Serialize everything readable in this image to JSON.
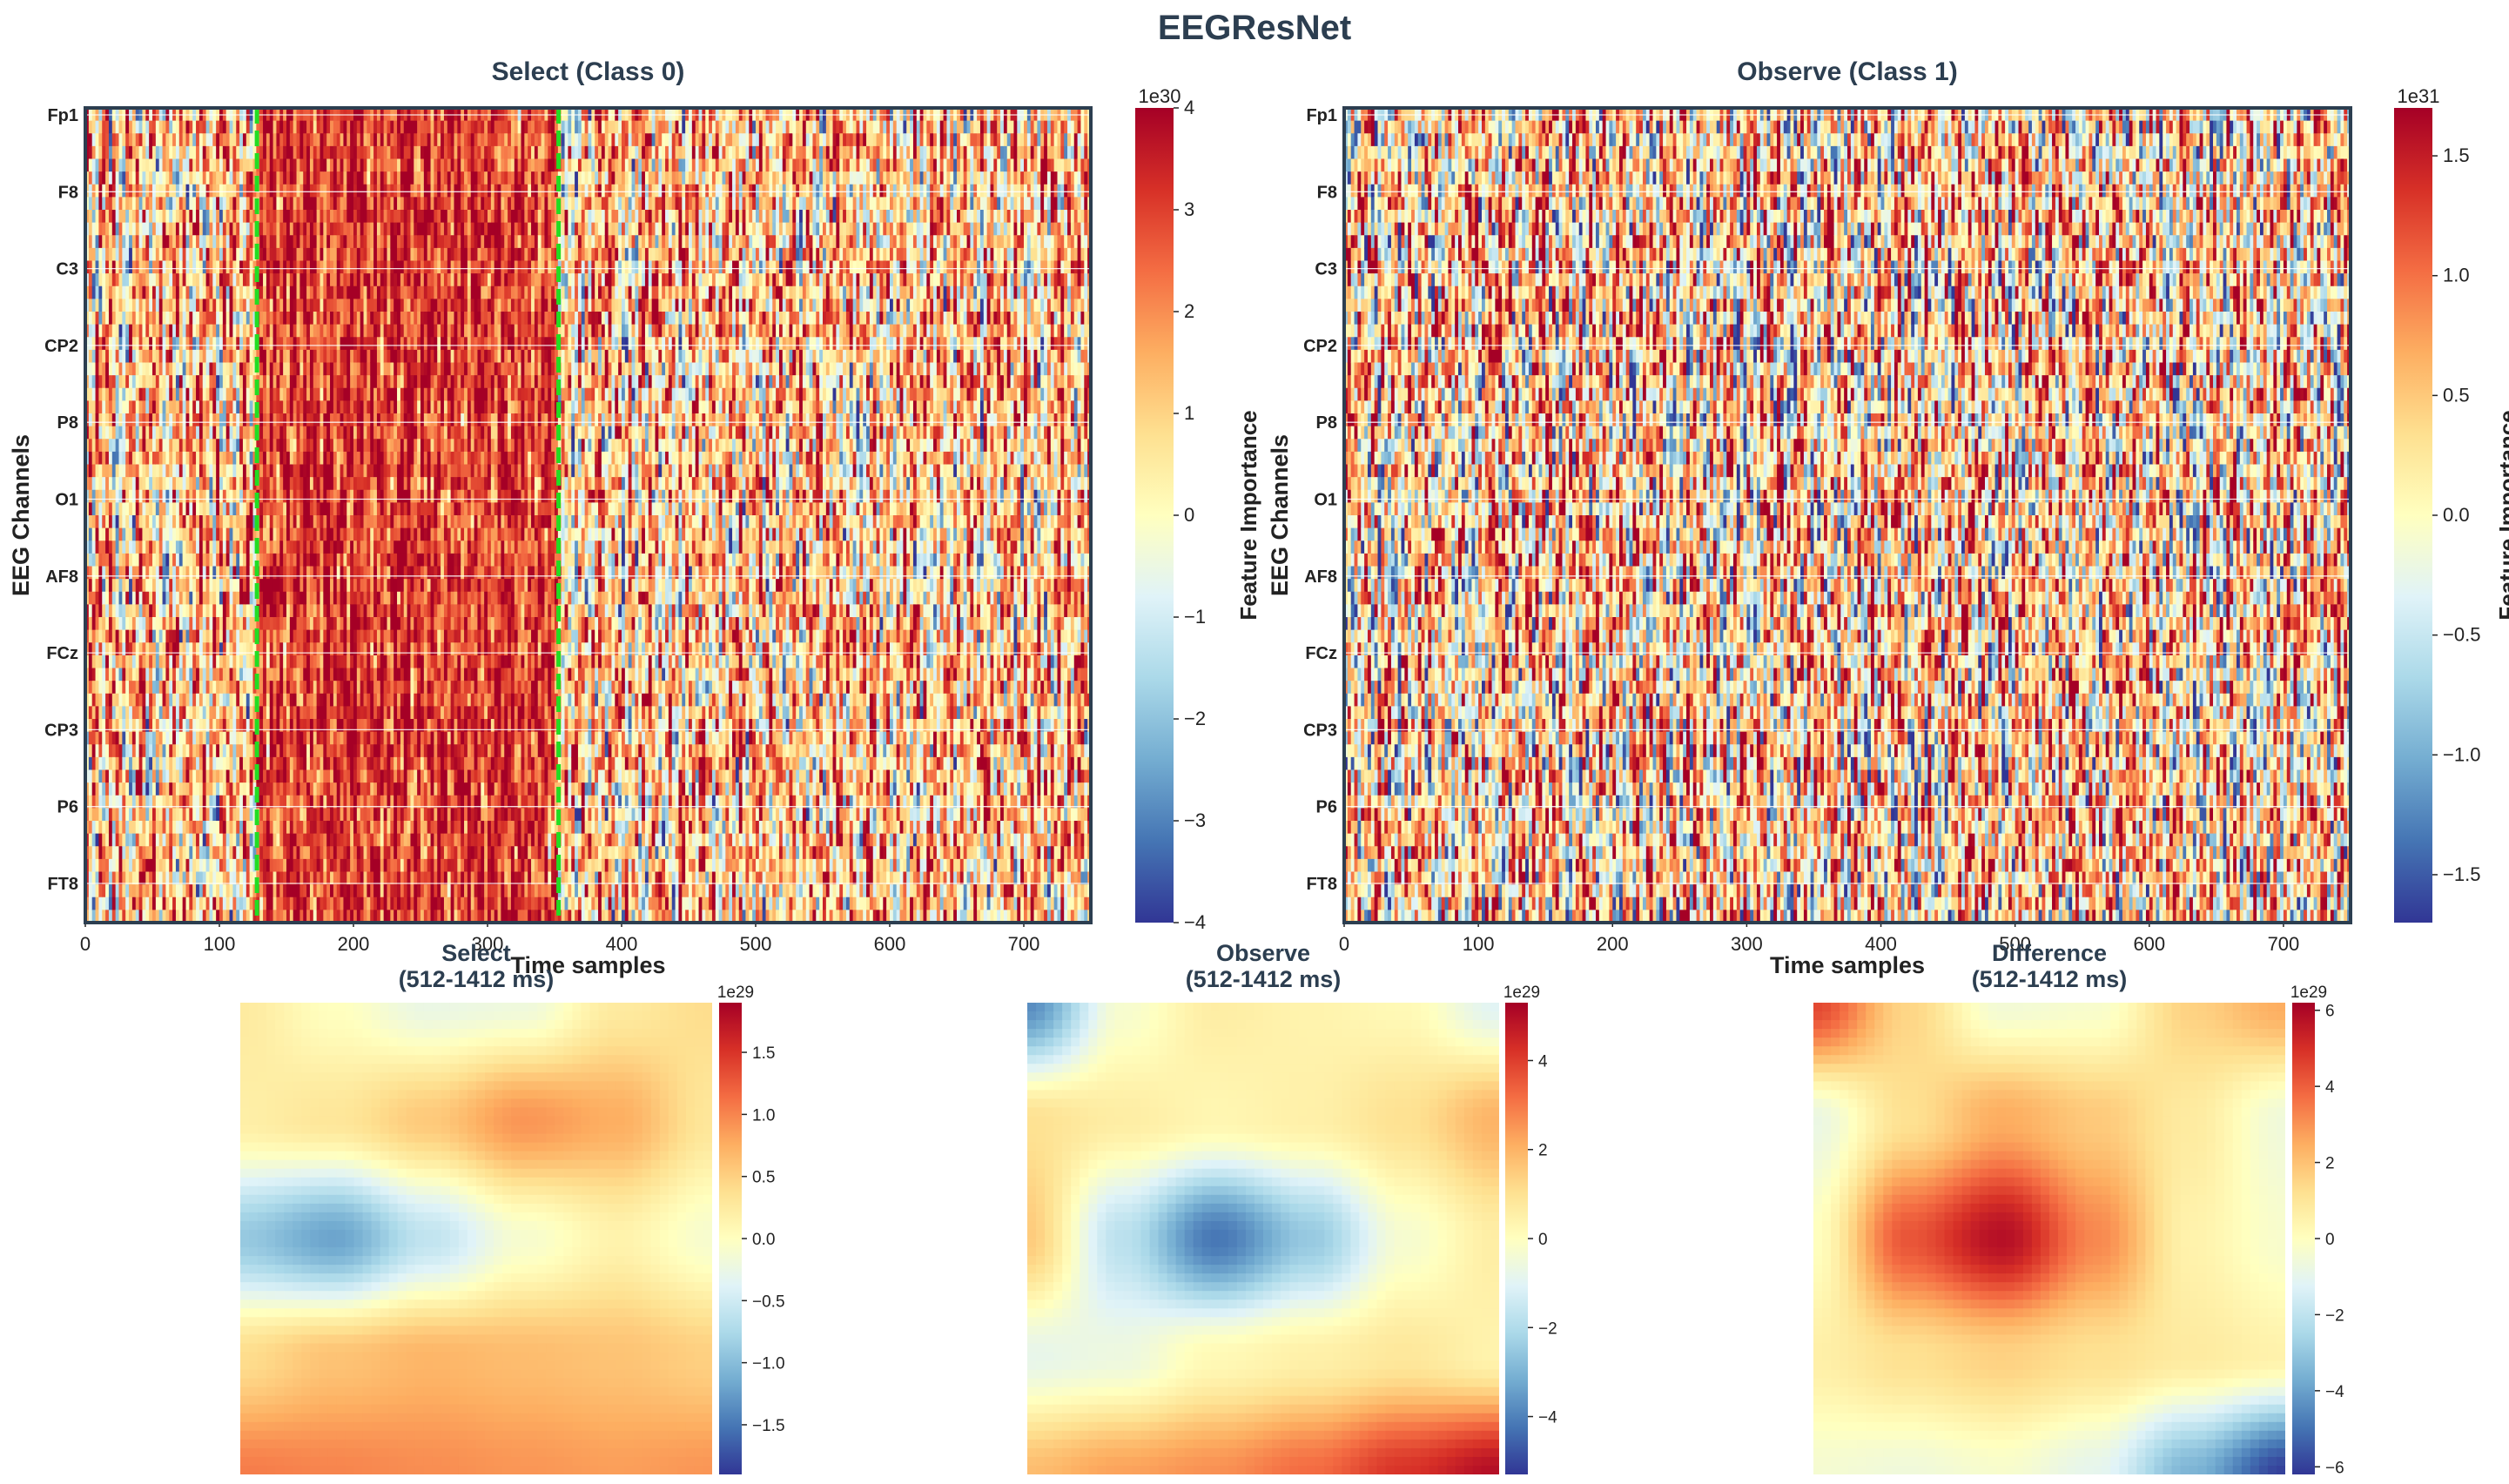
{
  "figure": {
    "title": "EEGResNet"
  },
  "colors": {
    "title": "#2c3e50",
    "text": "#222222",
    "frame": "#2c3e50",
    "grid": "#ffffff",
    "window_line": "#22dd22",
    "colormap": [
      "#313695",
      "#4575b4",
      "#74add1",
      "#abd9e9",
      "#e0f3f8",
      "#ffffbf",
      "#fee090",
      "#fdae61",
      "#f46d43",
      "#d73027",
      "#a50026"
    ]
  },
  "chart_data": [
    {
      "id": "select-heatmap",
      "type": "heatmap",
      "title": "Select (Class 0)",
      "xlabel": "Time samples",
      "ylabel": "EEG Channels",
      "x_ticks": [
        "0",
        "100",
        "200",
        "300",
        "400",
        "500",
        "600",
        "700"
      ],
      "x_tick_values": [
        0,
        100,
        200,
        300,
        400,
        500,
        600,
        700
      ],
      "xlim": [
        0,
        750
      ],
      "channels": [
        "Fp1",
        "F8",
        "C3",
        "CP2",
        "P8",
        "O1",
        "AF8",
        "FCz",
        "CP3",
        "P6",
        "FT8"
      ],
      "n_rows": 64,
      "time_window": {
        "start": 128,
        "end": 353
      },
      "colorbar": {
        "label": "Feature Importance",
        "offset_text": "1e30",
        "min": -4,
        "max": 4,
        "ticks": [
          "−4",
          "−3",
          "−2",
          "−1",
          "0",
          "1",
          "2",
          "3",
          "4"
        ],
        "tick_values": [
          -4,
          -3,
          -2,
          -1,
          0,
          1,
          2,
          3,
          4
        ]
      },
      "noise": {
        "bias": 0.12,
        "amp": 0.55,
        "window_bias": 0.38,
        "window_amp": 0.3,
        "seed": 7
      }
    },
    {
      "id": "observe-heatmap",
      "type": "heatmap",
      "title": "Observe (Class 1)",
      "xlabel": "Time samples",
      "ylabel": "EEG Channels",
      "x_ticks": [
        "0",
        "100",
        "200",
        "300",
        "400",
        "500",
        "600",
        "700"
      ],
      "x_tick_values": [
        0,
        100,
        200,
        300,
        400,
        500,
        600,
        700
      ],
      "xlim": [
        0,
        750
      ],
      "channels": [
        "Fp1",
        "F8",
        "C3",
        "CP2",
        "P8",
        "O1",
        "AF8",
        "FCz",
        "CP3",
        "P6",
        "FT8"
      ],
      "n_rows": 64,
      "colorbar": {
        "label": "Feature Importance",
        "offset_text": "1e31",
        "min": -1.7,
        "max": 1.7,
        "ticks": [
          "−1.5",
          "−1.0",
          "−0.5",
          "0.0",
          "0.5",
          "1.0",
          "1.5"
        ],
        "tick_values": [
          -1.5,
          -1.0,
          -0.5,
          0.0,
          0.5,
          1.0,
          1.5
        ]
      },
      "noise": {
        "bias": 0.08,
        "amp": 0.65,
        "seed": 13
      }
    },
    {
      "id": "select-topomap",
      "type": "heatmap",
      "title": "Select\n(512-1412 ms)",
      "title_lines": [
        "Select",
        "(512-1412 ms)"
      ],
      "grid": [
        [
          0.25,
          0.0,
          -0.25,
          -0.2,
          0.25,
          0.4
        ],
        [
          0.2,
          0.3,
          0.55,
          0.9,
          0.75,
          0.3
        ],
        [
          -0.9,
          -1.2,
          -0.6,
          -0.1,
          0.15,
          -0.1
        ],
        [
          0.4,
          0.6,
          0.7,
          0.65,
          0.6,
          0.5
        ],
        [
          1.05,
          1.0,
          0.95,
          0.9,
          0.85,
          0.9
        ]
      ],
      "colorbar": {
        "offset_text": "1e29",
        "min": -1.9,
        "max": 1.9,
        "ticks": [
          "−1.5",
          "−1.0",
          "−0.5",
          "0.0",
          "0.5",
          "1.0",
          "1.5"
        ],
        "tick_values": [
          -1.5,
          -1.0,
          -0.5,
          0.0,
          0.5,
          1.0,
          1.5
        ]
      }
    },
    {
      "id": "observe-topomap",
      "type": "heatmap",
      "title": "Observe\n(512-1412 ms)",
      "title_lines": [
        "Observe",
        "(512-1412 ms)"
      ],
      "grid": [
        [
          -3.8,
          -0.3,
          0.6,
          0.4,
          0.2,
          -1.0
        ],
        [
          1.0,
          0.6,
          0.3,
          0.5,
          1.0,
          2.0
        ],
        [
          1.5,
          -1.8,
          -4.2,
          -2.5,
          -0.3,
          0.6
        ],
        [
          -0.8,
          -0.6,
          0.2,
          0.5,
          0.8,
          0.4
        ],
        [
          1.8,
          2.3,
          2.6,
          3.2,
          4.2,
          5.0
        ]
      ],
      "colorbar": {
        "offset_text": "1e29",
        "min": -5.3,
        "max": 5.3,
        "ticks": [
          "−4",
          "−2",
          "0",
          "2",
          "4"
        ],
        "tick_values": [
          -4,
          -2,
          0,
          2,
          4
        ]
      }
    },
    {
      "id": "difference-topomap",
      "type": "heatmap",
      "title": "Difference\n(512-1412 ms)",
      "title_lines": [
        "Difference",
        "(512-1412 ms)"
      ],
      "grid": [
        [
          4.5,
          1.5,
          -0.5,
          -0.3,
          1.6,
          2.5
        ],
        [
          -0.8,
          1.2,
          2.5,
          1.8,
          0.8,
          -0.6
        ],
        [
          0.0,
          4.2,
          5.8,
          3.2,
          0.5,
          -0.3
        ],
        [
          0.6,
          1.2,
          1.6,
          1.2,
          0.8,
          0.5
        ],
        [
          -0.4,
          -0.6,
          -0.3,
          -1.0,
          -3.5,
          -6.0
        ]
      ],
      "colorbar": {
        "offset_text": "1e29",
        "min": -6.2,
        "max": 6.2,
        "ticks": [
          "−6",
          "−4",
          "−2",
          "0",
          "2",
          "4",
          "6"
        ],
        "tick_values": [
          -6,
          -4,
          -2,
          0,
          2,
          4,
          6
        ]
      }
    }
  ]
}
